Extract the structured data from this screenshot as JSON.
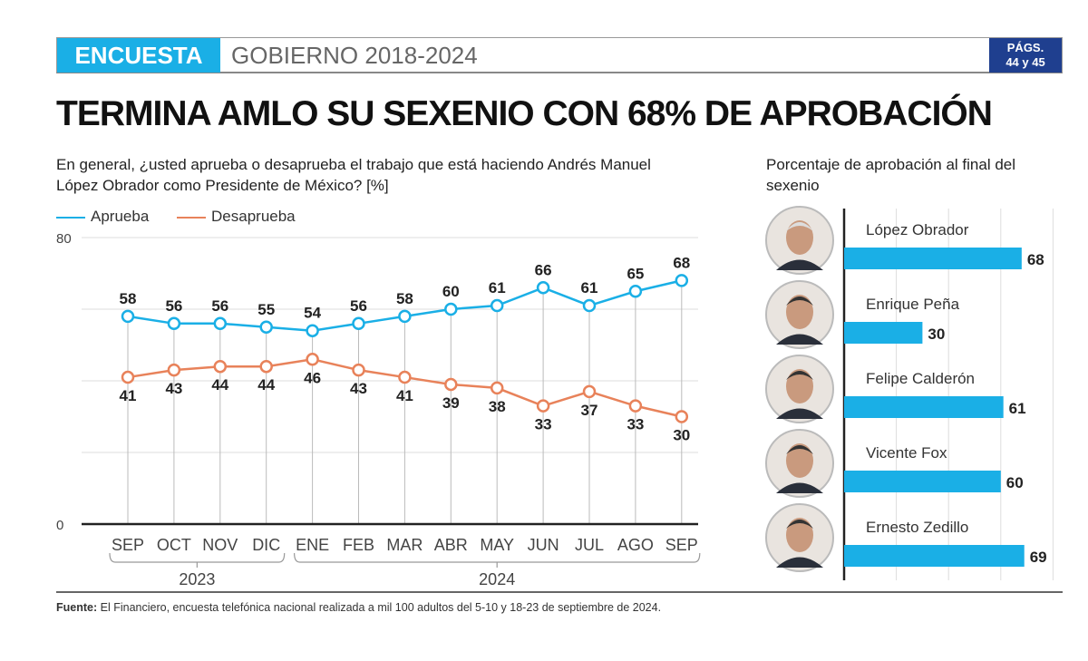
{
  "header": {
    "section": "ENCUESTA",
    "subtitle": "GOBIERNO 2018-2024",
    "pages_line1": "PÁGS.",
    "pages_line2": "44 y 45"
  },
  "title": "TERMINA AMLO SU SEXENIO CON 68% DE APROBACIÓN",
  "source_label": "Fuente:",
  "source_text": " El Financiero, encuesta telefónica nacional realizada a mil 100 adultos del 5-10 y 18-23 de septiembre de 2024.",
  "colors": {
    "aprueba": "#1aafe6",
    "desaprueba": "#e8825a",
    "bar": "#1aafe6",
    "header_blue": "#1f3f8f"
  },
  "chart_data": [
    {
      "type": "line",
      "title": "En general, ¿usted aprueba o desaprueba el trabajo que está haciendo Andrés Manuel López Obrador como Presidente de México? [%]",
      "categories": [
        "SEP",
        "OCT",
        "NOV",
        "DIC",
        "ENE",
        "FEB",
        "MAR",
        "ABR",
        "MAY",
        "JUN",
        "JUL",
        "AGO",
        "SEP"
      ],
      "year_groups": [
        {
          "label": "2023",
          "from": 0,
          "to": 3
        },
        {
          "label": "2024",
          "from": 4,
          "to": 12
        }
      ],
      "series": [
        {
          "name": "Aprueba",
          "values": [
            58,
            56,
            56,
            55,
            54,
            56,
            58,
            60,
            61,
            66,
            61,
            65,
            68
          ]
        },
        {
          "name": "Desaprueba",
          "values": [
            41,
            43,
            44,
            44,
            46,
            43,
            41,
            39,
            38,
            33,
            37,
            33,
            30
          ]
        }
      ],
      "ylim": [
        0,
        80
      ],
      "yticks": [
        "0",
        "80"
      ],
      "grid": true,
      "legend": "top-left"
    },
    {
      "type": "bar",
      "orientation": "horizontal",
      "title": "Porcentaje de aprobación al final del sexenio",
      "categories": [
        "López Obrador",
        "Enrique Peña",
        "Felipe Calderón",
        "Vicente Fox",
        "Ernesto Zedillo"
      ],
      "values": [
        68,
        30,
        61,
        60,
        69
      ],
      "xlim": [
        0,
        80
      ]
    }
  ]
}
